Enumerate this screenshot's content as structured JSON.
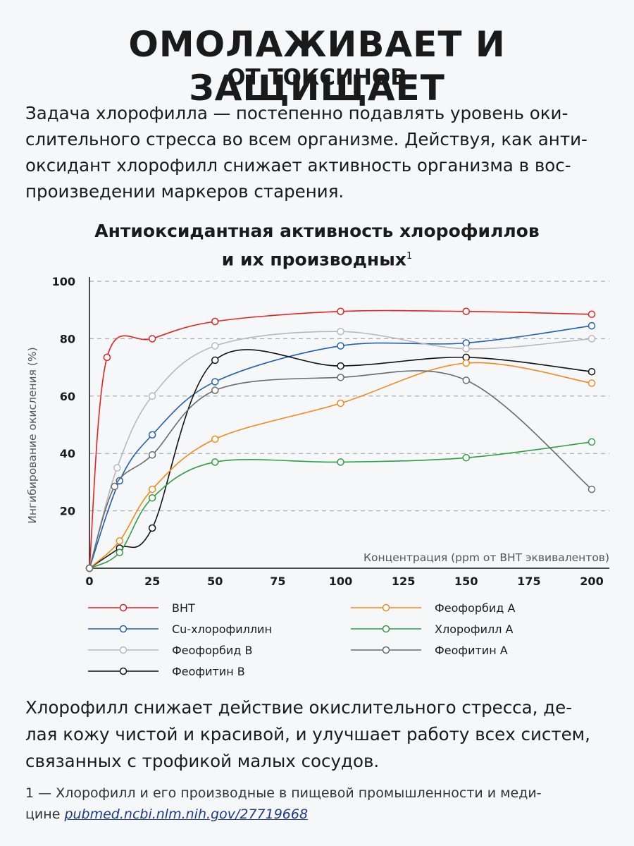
{
  "header": {
    "title": "ОМОЛАЖИВАЕТ И ЗАЩИЩАЕТ",
    "subtitle": "ОТ ТОКСИНОВ"
  },
  "intro": {
    "line1": "Задача хлорофилла — постепенно подавлять уровень оки-",
    "line2": "слительного стресса во всем организме. Действуя, как анти-",
    "line3": "оксидант хлорофилл снижает активность организма в вос-",
    "line4": "произведении маркеров старения."
  },
  "chart_title": {
    "line1": "Антиоксидантная активность хлорофиллов",
    "line2": "и их производных",
    "footnote_mark": "1"
  },
  "chart_data": {
    "type": "line",
    "title": "Антиоксидантная активность хлорофиллов и их производных",
    "xlabel": "Концентрация (ppm от BHT эквивалентов)",
    "ylabel": "Ингибирование окисления (%)",
    "xlim": [
      0,
      200
    ],
    "ylim": [
      0,
      100
    ],
    "x_ticks": [
      0,
      25,
      50,
      75,
      100,
      125,
      150,
      175,
      200
    ],
    "y_ticks": [
      20,
      40,
      60,
      80,
      100
    ],
    "grid": "horizontal dashed",
    "legend": "bottom",
    "series": [
      {
        "name": "BHT",
        "color": "#e32322",
        "x": [
          0,
          7,
          25,
          50,
          100,
          150,
          200
        ],
        "y": [
          0,
          73.5,
          80,
          86,
          89.5,
          89.5,
          88.5
        ]
      },
      {
        "name": "Cu-хлорофиллин",
        "color": "#1f5fb4",
        "x": [
          0,
          12,
          25,
          50,
          100,
          150,
          200
        ],
        "y": [
          0,
          30.5,
          46.5,
          65,
          77.5,
          78.5,
          84.5
        ]
      },
      {
        "name": "Феофорбид B",
        "color": "#b8b8b8",
        "x": [
          0,
          11,
          25,
          50,
          100,
          150,
          200
        ],
        "y": [
          0,
          35,
          60,
          77.5,
          82.5,
          76.5,
          80
        ]
      },
      {
        "name": "Феофитин B",
        "color": "#111111",
        "x": [
          0,
          12,
          25,
          50,
          100,
          150,
          200
        ],
        "y": [
          0,
          7,
          14,
          72.5,
          70.5,
          73.5,
          68.5
        ]
      },
      {
        "name": "Феофорбид A",
        "color": "#f18a1b",
        "x": [
          0,
          12,
          25,
          50,
          100,
          150,
          200
        ],
        "y": [
          0,
          9.5,
          27.5,
          45,
          57.5,
          71.5,
          64.5
        ]
      },
      {
        "name": "Хлорофилл A",
        "color": "#2f9e44",
        "x": [
          0,
          12,
          25,
          50,
          100,
          150,
          200
        ],
        "y": [
          0,
          5.5,
          24.5,
          37,
          37,
          38.5,
          44
        ]
      },
      {
        "name": "Феофитин A",
        "color": "#6a6a6a",
        "x": [
          0,
          10,
          25,
          50,
          100,
          150,
          200
        ],
        "y": [
          0,
          28.5,
          39.5,
          62,
          66.5,
          65.5,
          27.5
        ]
      }
    ]
  },
  "outro": {
    "line1": "Хлорофилл снижает действие окислительного стресса, де-",
    "line2": "лая кожу чистой и красивой, и улучшает работу всех систем,",
    "line3": "связанных с трофикой малых сосудов."
  },
  "footnote": {
    "line1": "1 — Хлорофилл и его производные в пищевой промышленности и меди-",
    "line2_prefix": "цине ",
    "link": "pubmed.ncbi.nlm.nih.gov/27719668"
  }
}
